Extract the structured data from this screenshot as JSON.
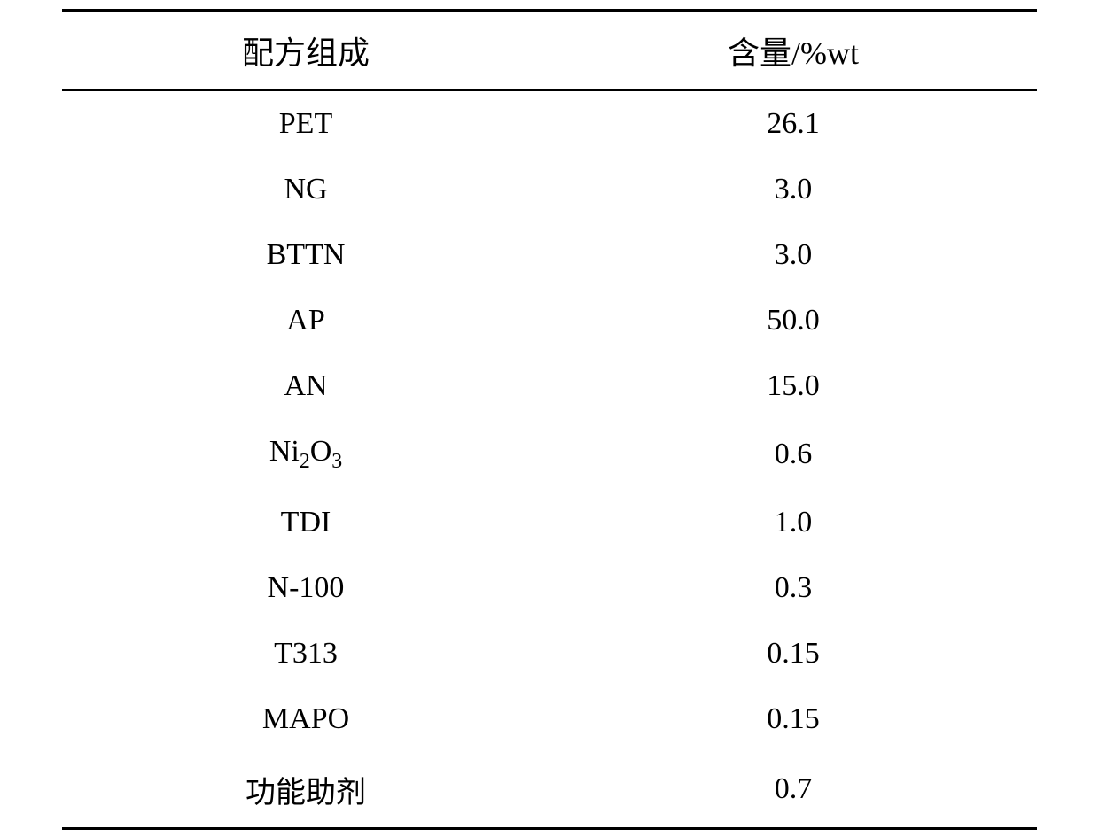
{
  "table": {
    "columns": [
      "配方组成",
      "含量/%wt"
    ],
    "rows": [
      [
        "PET",
        "26.1"
      ],
      [
        "NG",
        "3.0"
      ],
      [
        "BTTN",
        "3.0"
      ],
      [
        "AP",
        "50.0"
      ],
      [
        "AN",
        "15.0"
      ],
      [
        "Ni₂O₃",
        "0.6"
      ],
      [
        "TDI",
        "1.0"
      ],
      [
        "N-100",
        "0.3"
      ],
      [
        "T313",
        "0.15"
      ],
      [
        "MAPO",
        "0.15"
      ],
      [
        "功能助剂",
        "0.7"
      ]
    ],
    "styling": {
      "border_top_width": 3,
      "border_bottom_width": 3,
      "header_border_bottom_width": 2,
      "border_color": "#000000",
      "background_color": "#ffffff",
      "text_color": "#000000",
      "header_fontsize": 36,
      "cell_fontsize": 34,
      "font_family": "Times New Roman, serif",
      "text_align": "center",
      "row_padding_vertical": 18
    }
  }
}
